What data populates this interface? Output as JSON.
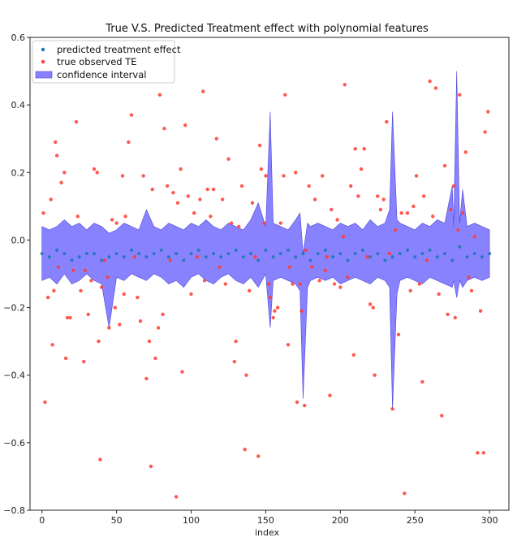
{
  "chart_data": {
    "type": "scatter",
    "title": "True V.S. Predicted Treatment effect with polynomial features",
    "xlabel": "index",
    "ylabel": "",
    "xlim": [
      -8,
      313
    ],
    "ylim": [
      -0.8,
      0.6
    ],
    "xticks": [
      0,
      50,
      100,
      150,
      200,
      250,
      300
    ],
    "yticks": [
      -0.8,
      -0.6,
      -0.4,
      -0.2,
      0.0,
      0.2,
      0.4,
      0.6
    ],
    "xtick_labels": [
      "0",
      "50",
      "100",
      "150",
      "200",
      "250",
      "300"
    ],
    "ytick_labels": [
      "−0.8",
      "−0.6",
      "−0.4",
      "−0.2",
      "0.0",
      "0.2",
      "0.4",
      "0.6"
    ],
    "grid": false,
    "legend_position": "upper-left",
    "colors": {
      "predicted": "#1f77b4",
      "true": "#ff3b30",
      "band": "#6c63ff"
    },
    "series": [
      {
        "name": "predicted treatment effect",
        "kind": "scatter",
        "points": [
          [
            0,
            -0.04
          ],
          [
            5,
            -0.05
          ],
          [
            10,
            -0.03
          ],
          [
            15,
            -0.04
          ],
          [
            20,
            -0.06
          ],
          [
            25,
            -0.05
          ],
          [
            30,
            -0.04
          ],
          [
            35,
            -0.04
          ],
          [
            40,
            -0.06
          ],
          [
            45,
            -0.05
          ],
          [
            50,
            -0.04
          ],
          [
            55,
            -0.05
          ],
          [
            60,
            -0.03
          ],
          [
            65,
            -0.04
          ],
          [
            70,
            -0.05
          ],
          [
            75,
            -0.04
          ],
          [
            80,
            -0.03
          ],
          [
            85,
            -0.05
          ],
          [
            90,
            -0.04
          ],
          [
            95,
            -0.06
          ],
          [
            100,
            -0.04
          ],
          [
            105,
            -0.03
          ],
          [
            110,
            -0.05
          ],
          [
            115,
            -0.04
          ],
          [
            120,
            -0.05
          ],
          [
            125,
            -0.04
          ],
          [
            130,
            -0.03
          ],
          [
            135,
            -0.05
          ],
          [
            140,
            -0.04
          ],
          [
            145,
            -0.06
          ],
          [
            150,
            -0.03
          ],
          [
            155,
            -0.05
          ],
          [
            160,
            -0.04
          ],
          [
            165,
            -0.03
          ],
          [
            170,
            -0.05
          ],
          [
            175,
            -0.04
          ],
          [
            180,
            -0.06
          ],
          [
            185,
            -0.04
          ],
          [
            190,
            -0.03
          ],
          [
            195,
            -0.05
          ],
          [
            200,
            -0.04
          ],
          [
            205,
            -0.06
          ],
          [
            210,
            -0.04
          ],
          [
            215,
            -0.03
          ],
          [
            220,
            -0.05
          ],
          [
            225,
            -0.04
          ],
          [
            230,
            -0.06
          ],
          [
            235,
            -0.05
          ],
          [
            240,
            -0.04
          ],
          [
            245,
            -0.03
          ],
          [
            250,
            -0.05
          ],
          [
            255,
            -0.04
          ],
          [
            260,
            -0.03
          ],
          [
            265,
            -0.05
          ],
          [
            270,
            -0.04
          ],
          [
            275,
            -0.06
          ],
          [
            280,
            -0.02
          ],
          [
            285,
            -0.05
          ],
          [
            290,
            -0.04
          ],
          [
            295,
            -0.05
          ],
          [
            300,
            -0.04
          ]
        ]
      },
      {
        "name": "true observed TE",
        "kind": "scatter",
        "points": [
          [
            1,
            0.08
          ],
          [
            2,
            -0.48
          ],
          [
            4,
            -0.17
          ],
          [
            6,
            0.12
          ],
          [
            7,
            -0.31
          ],
          [
            8,
            -0.15
          ],
          [
            9,
            0.29
          ],
          [
            10,
            0.25
          ],
          [
            11,
            -0.08
          ],
          [
            13,
            0.17
          ],
          [
            15,
            0.2
          ],
          [
            16,
            -0.35
          ],
          [
            17,
            -0.23
          ],
          [
            19,
            -0.23
          ],
          [
            21,
            -0.09
          ],
          [
            23,
            0.35
          ],
          [
            24,
            0.07
          ],
          [
            26,
            -0.15
          ],
          [
            28,
            -0.36
          ],
          [
            29,
            -0.09
          ],
          [
            31,
            -0.22
          ],
          [
            33,
            -0.12
          ],
          [
            35,
            0.21
          ],
          [
            37,
            0.2
          ],
          [
            38,
            -0.3
          ],
          [
            39,
            -0.65
          ],
          [
            40,
            -0.14
          ],
          [
            42,
            -0.06
          ],
          [
            44,
            -0.11
          ],
          [
            45,
            -0.26
          ],
          [
            47,
            0.06
          ],
          [
            49,
            -0.2
          ],
          [
            50,
            0.05
          ],
          [
            52,
            -0.25
          ],
          [
            54,
            0.19
          ],
          [
            55,
            -0.16
          ],
          [
            56,
            0.07
          ],
          [
            58,
            0.29
          ],
          [
            60,
            0.37
          ],
          [
            62,
            -0.05
          ],
          [
            64,
            -0.17
          ],
          [
            66,
            -0.24
          ],
          [
            68,
            0.19
          ],
          [
            70,
            -0.41
          ],
          [
            72,
            -0.3
          ],
          [
            73,
            -0.67
          ],
          [
            74,
            0.15
          ],
          [
            76,
            -0.35
          ],
          [
            78,
            -0.26
          ],
          [
            79,
            0.43
          ],
          [
            81,
            -0.22
          ],
          [
            82,
            0.33
          ],
          [
            84,
            0.16
          ],
          [
            86,
            -0.06
          ],
          [
            88,
            0.14
          ],
          [
            90,
            -0.76
          ],
          [
            91,
            0.11
          ],
          [
            93,
            0.21
          ],
          [
            94,
            -0.39
          ],
          [
            96,
            0.34
          ],
          [
            98,
            0.13
          ],
          [
            100,
            -0.16
          ],
          [
            102,
            0.08
          ],
          [
            104,
            -0.05
          ],
          [
            106,
            0.12
          ],
          [
            108,
            0.44
          ],
          [
            109,
            -0.12
          ],
          [
            111,
            0.15
          ],
          [
            113,
            0.07
          ],
          [
            115,
            0.15
          ],
          [
            117,
            0.3
          ],
          [
            119,
            -0.08
          ],
          [
            121,
            0.12
          ],
          [
            123,
            -0.13
          ],
          [
            125,
            0.24
          ],
          [
            127,
            0.05
          ],
          [
            129,
            -0.36
          ],
          [
            130,
            -0.3
          ],
          [
            132,
            0.04
          ],
          [
            134,
            0.16
          ],
          [
            136,
            -0.62
          ],
          [
            137,
            -0.4
          ],
          [
            139,
            -0.15
          ],
          [
            141,
            0.11
          ],
          [
            143,
            -0.05
          ],
          [
            145,
            -0.64
          ],
          [
            146,
            0.28
          ],
          [
            147,
            0.21
          ],
          [
            149,
            0.05
          ],
          [
            150,
            0.19
          ],
          [
            152,
            -0.13
          ],
          [
            153,
            -0.17
          ],
          [
            155,
            -0.23
          ],
          [
            156,
            -0.21
          ],
          [
            158,
            -0.2
          ],
          [
            160,
            0.05
          ],
          [
            162,
            0.19
          ],
          [
            163,
            0.43
          ],
          [
            165,
            -0.31
          ],
          [
            166,
            -0.08
          ],
          [
            168,
            -0.13
          ],
          [
            170,
            0.2
          ],
          [
            171,
            -0.48
          ],
          [
            173,
            -0.13
          ],
          [
            174,
            -0.21
          ],
          [
            176,
            -0.49
          ],
          [
            177,
            -0.03
          ],
          [
            179,
            0.16
          ],
          [
            181,
            -0.08
          ],
          [
            183,
            0.12
          ],
          [
            186,
            -0.12
          ],
          [
            188,
            0.19
          ],
          [
            190,
            -0.09
          ],
          [
            191,
            -0.05
          ],
          [
            193,
            -0.46
          ],
          [
            194,
            0.09
          ],
          [
            196,
            -0.13
          ],
          [
            198,
            0.06
          ],
          [
            200,
            -0.14
          ],
          [
            202,
            0.01
          ],
          [
            203,
            0.46
          ],
          [
            205,
            -0.11
          ],
          [
            207,
            0.16
          ],
          [
            209,
            -0.34
          ],
          [
            210,
            0.27
          ],
          [
            212,
            0.13
          ],
          [
            214,
            0.21
          ],
          [
            216,
            0.27
          ],
          [
            218,
            -0.05
          ],
          [
            220,
            -0.19
          ],
          [
            222,
            -0.2
          ],
          [
            223,
            -0.4
          ],
          [
            225,
            0.13
          ],
          [
            227,
            0.09
          ],
          [
            229,
            0.12
          ],
          [
            231,
            0.35
          ],
          [
            233,
            -0.04
          ],
          [
            235,
            -0.5
          ],
          [
            237,
            0.03
          ],
          [
            239,
            -0.28
          ],
          [
            241,
            0.08
          ],
          [
            243,
            -0.75
          ],
          [
            245,
            0.08
          ],
          [
            247,
            -0.15
          ],
          [
            249,
            0.1
          ],
          [
            251,
            0.19
          ],
          [
            253,
            -0.13
          ],
          [
            255,
            -0.42
          ],
          [
            256,
            0.13
          ],
          [
            258,
            -0.06
          ],
          [
            260,
            0.47
          ],
          [
            262,
            0.07
          ],
          [
            264,
            0.45
          ],
          [
            266,
            -0.16
          ],
          [
            268,
            -0.52
          ],
          [
            270,
            0.22
          ],
          [
            272,
            -0.22
          ],
          [
            274,
            0.09
          ],
          [
            276,
            0.16
          ],
          [
            277,
            -0.23
          ],
          [
            279,
            0.03
          ],
          [
            280,
            0.43
          ],
          [
            282,
            0.08
          ],
          [
            284,
            0.26
          ],
          [
            286,
            -0.11
          ],
          [
            288,
            -0.15
          ],
          [
            290,
            0.01
          ],
          [
            292,
            -0.63
          ],
          [
            294,
            -0.21
          ],
          [
            296,
            -0.63
          ],
          [
            297,
            0.32
          ],
          [
            299,
            0.38
          ]
        ]
      },
      {
        "name": "confidence interval",
        "kind": "band",
        "x": [
          0,
          5,
          10,
          15,
          20,
          25,
          30,
          35,
          40,
          45,
          50,
          55,
          60,
          65,
          70,
          75,
          80,
          85,
          90,
          95,
          100,
          105,
          110,
          115,
          120,
          125,
          130,
          135,
          140,
          145,
          150,
          153,
          155,
          160,
          165,
          170,
          173,
          175,
          178,
          180,
          185,
          190,
          195,
          200,
          205,
          210,
          215,
          220,
          225,
          230,
          233,
          235,
          238,
          240,
          245,
          250,
          255,
          260,
          265,
          270,
          275,
          276,
          278,
          280,
          282,
          285,
          290,
          295,
          300
        ],
        "lower": [
          -0.12,
          -0.11,
          -0.13,
          -0.1,
          -0.13,
          -0.12,
          -0.1,
          -0.12,
          -0.13,
          -0.26,
          -0.11,
          -0.12,
          -0.1,
          -0.11,
          -0.12,
          -0.1,
          -0.11,
          -0.13,
          -0.12,
          -0.14,
          -0.11,
          -0.1,
          -0.12,
          -0.13,
          -0.11,
          -0.1,
          -0.12,
          -0.13,
          -0.11,
          -0.14,
          -0.1,
          -0.26,
          -0.12,
          -0.11,
          -0.12,
          -0.13,
          -0.15,
          -0.47,
          -0.14,
          -0.12,
          -0.11,
          -0.12,
          -0.11,
          -0.13,
          -0.12,
          -0.11,
          -0.12,
          -0.13,
          -0.11,
          -0.12,
          -0.14,
          -0.5,
          -0.16,
          -0.12,
          -0.11,
          -0.12,
          -0.13,
          -0.11,
          -0.12,
          -0.13,
          -0.14,
          -0.12,
          -0.17,
          -0.12,
          -0.14,
          -0.12,
          -0.11,
          -0.12,
          -0.11
        ],
        "upper": [
          0.04,
          0.03,
          0.04,
          0.06,
          0.04,
          0.05,
          0.03,
          0.05,
          0.04,
          0.02,
          0.03,
          0.05,
          0.04,
          0.03,
          0.09,
          0.04,
          0.03,
          0.05,
          0.04,
          0.03,
          0.05,
          0.04,
          0.06,
          0.04,
          0.03,
          0.05,
          0.04,
          0.03,
          0.06,
          0.11,
          0.04,
          0.38,
          0.05,
          0.04,
          0.03,
          0.06,
          0.08,
          -0.04,
          0.05,
          0.04,
          0.05,
          0.04,
          0.03,
          0.05,
          0.04,
          0.05,
          0.03,
          0.06,
          0.04,
          0.05,
          0.09,
          0.38,
          0.06,
          0.05,
          0.04,
          0.03,
          0.05,
          0.04,
          0.06,
          0.05,
          0.16,
          0.04,
          0.5,
          0.05,
          0.15,
          0.04,
          0.05,
          0.04,
          0.03
        ]
      }
    ]
  }
}
